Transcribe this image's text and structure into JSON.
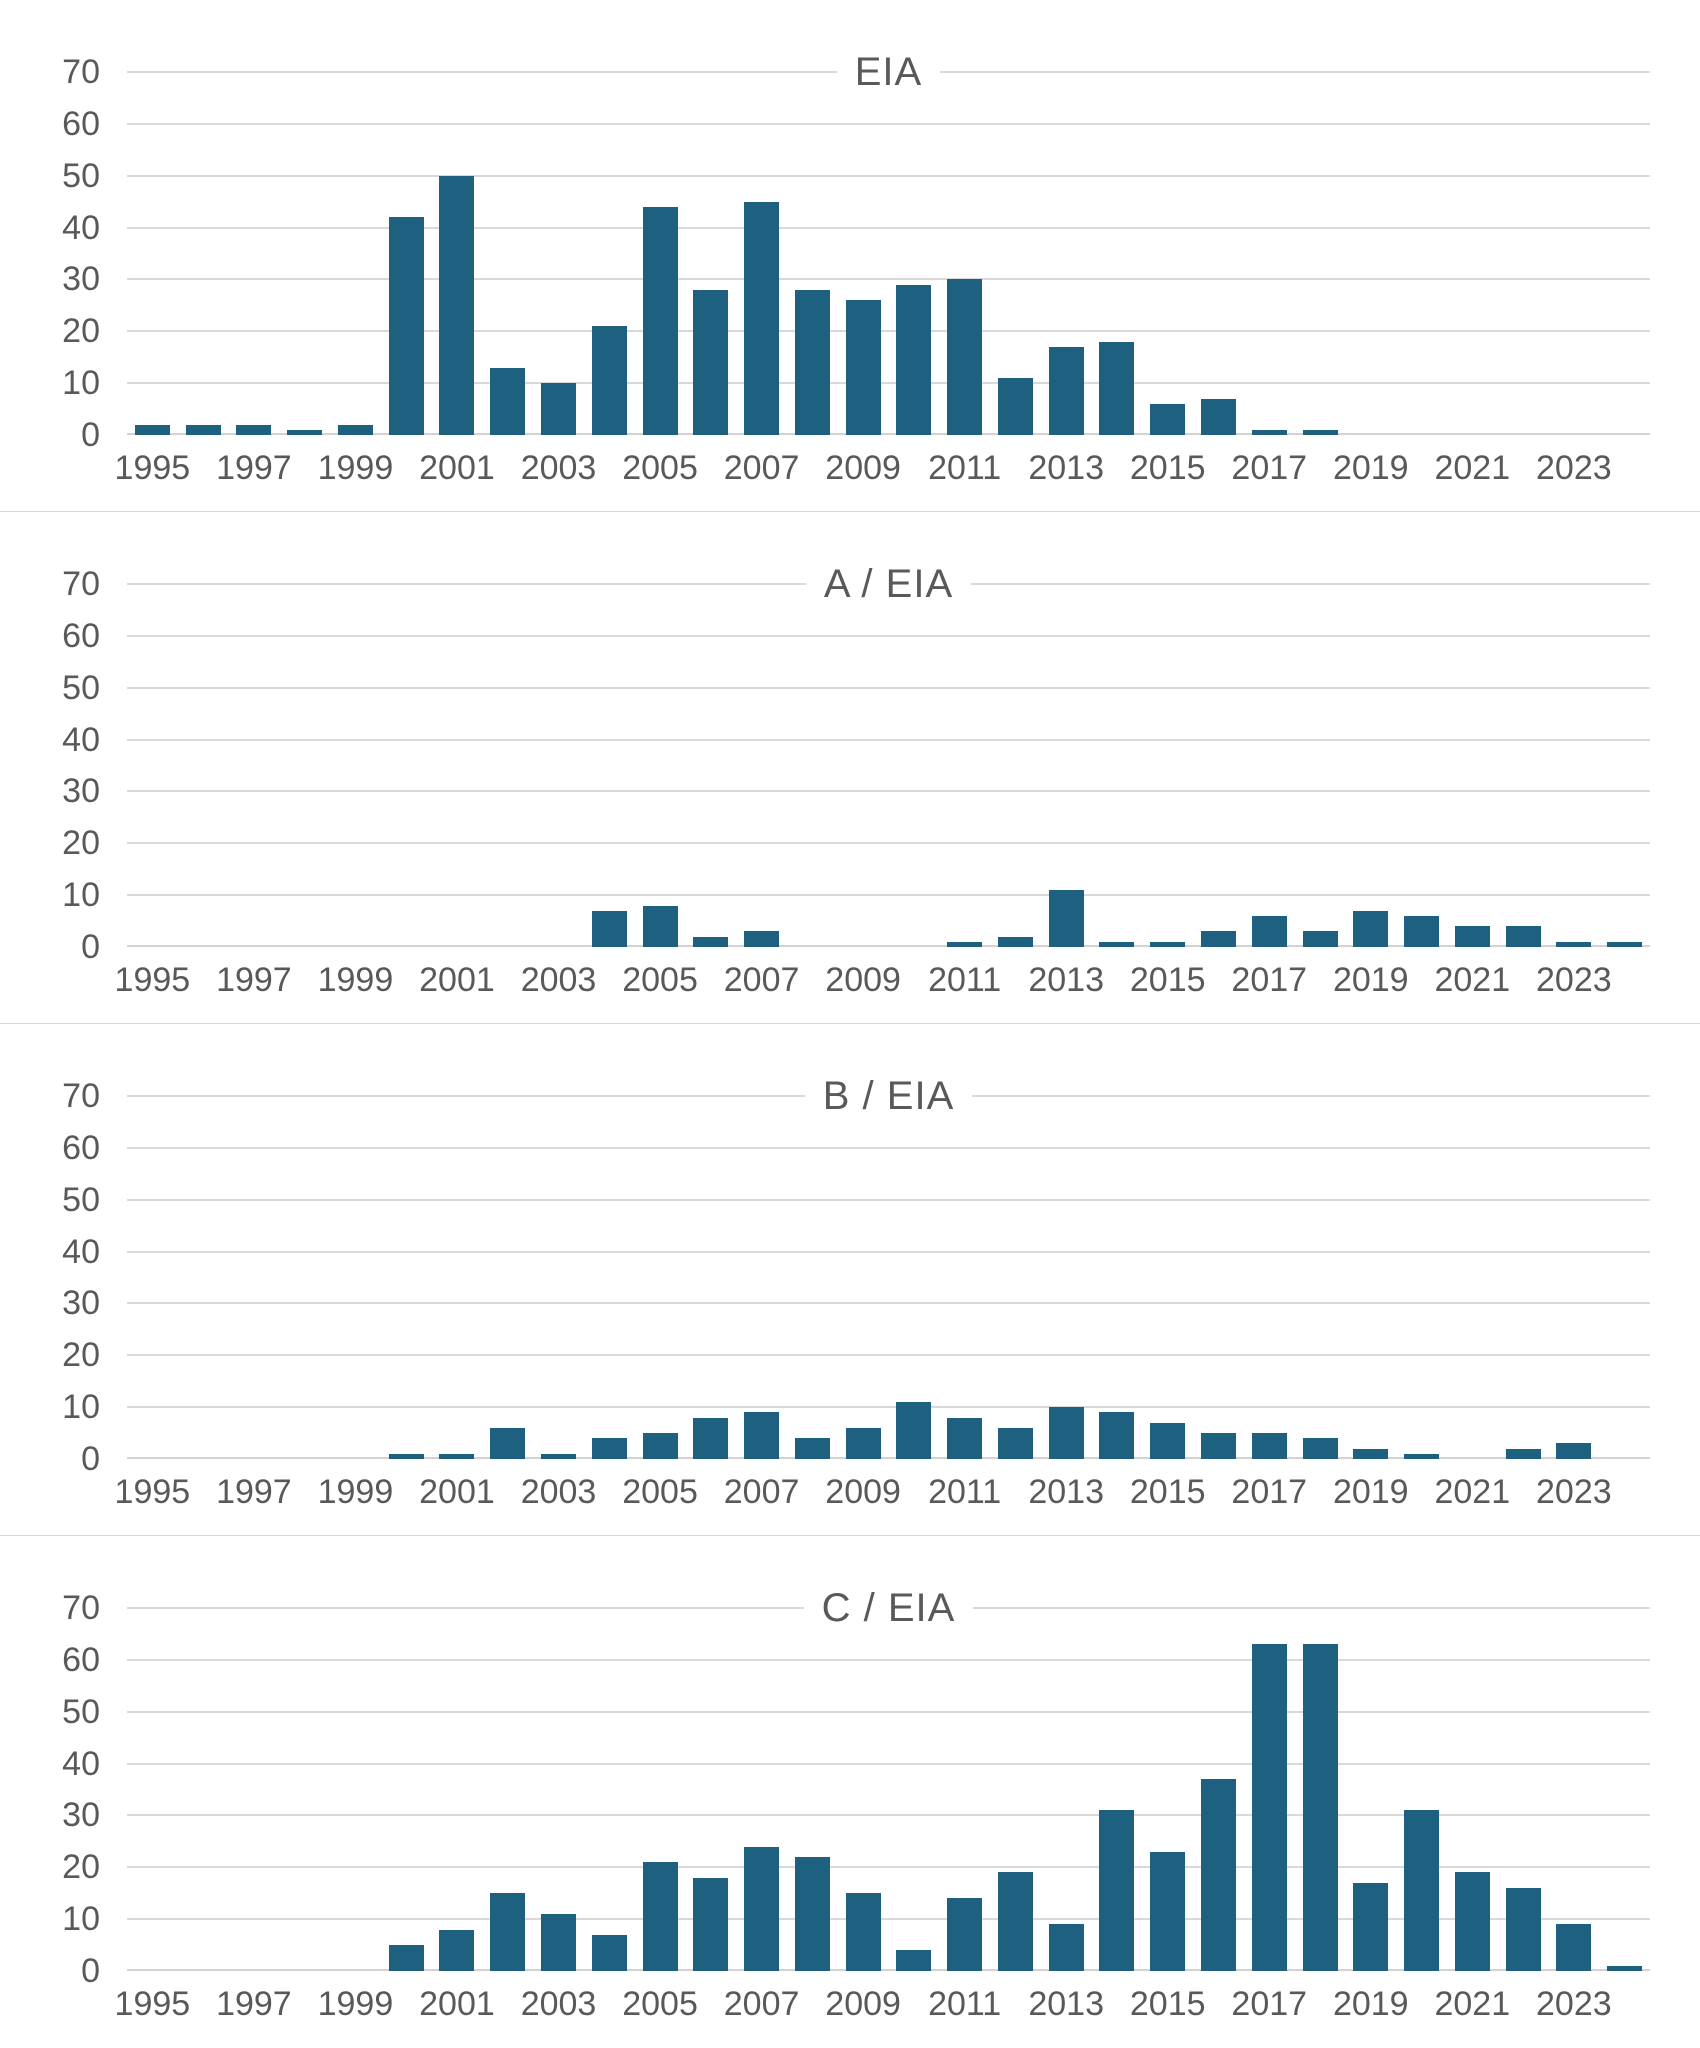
{
  "figure": {
    "background_color": "#ffffff",
    "outer_border_color": "#c9c9c9",
    "panel_separator_color": "#d9d9d9",
    "bar_color": "#1d6080",
    "gridline_color": "#d9d9d9",
    "text_color": "#595959",
    "panel_count": 4
  },
  "chart_data": [
    {
      "type": "bar",
      "title": "EIA",
      "x": [
        1995,
        1996,
        1997,
        1998,
        1999,
        2000,
        2001,
        2002,
        2003,
        2004,
        2005,
        2006,
        2007,
        2008,
        2009,
        2010,
        2011,
        2012,
        2013,
        2014,
        2015,
        2016,
        2017,
        2018,
        2019,
        2020,
        2021,
        2022,
        2023,
        2024
      ],
      "values": [
        2,
        2,
        2,
        1,
        2,
        42,
        50,
        13,
        10,
        21,
        44,
        28,
        45,
        28,
        26,
        29,
        30,
        11,
        17,
        18,
        6,
        7,
        1,
        1,
        0,
        0,
        0,
        0,
        0,
        0
      ],
      "xlabel": "",
      "ylabel": "",
      "ylim": [
        0,
        70
      ],
      "yticks": [
        0,
        10,
        20,
        30,
        40,
        50,
        60,
        70
      ],
      "xtick_labels": [
        "1995",
        "1997",
        "1999",
        "2001",
        "2003",
        "2005",
        "2007",
        "2009",
        "2011",
        "2013",
        "2015",
        "2017",
        "2019",
        "2021",
        "2023"
      ],
      "grid": true,
      "legend": false
    },
    {
      "type": "bar",
      "title": "A / EIA",
      "x": [
        1995,
        1996,
        1997,
        1998,
        1999,
        2000,
        2001,
        2002,
        2003,
        2004,
        2005,
        2006,
        2007,
        2008,
        2009,
        2010,
        2011,
        2012,
        2013,
        2014,
        2015,
        2016,
        2017,
        2018,
        2019,
        2020,
        2021,
        2022,
        2023,
        2024
      ],
      "values": [
        0,
        0,
        0,
        0,
        0,
        0,
        0,
        0,
        0,
        7,
        8,
        2,
        3,
        0,
        0,
        0,
        1,
        2,
        11,
        1,
        1,
        3,
        6,
        3,
        7,
        6,
        4,
        4,
        1,
        1
      ],
      "xlabel": "",
      "ylabel": "",
      "ylim": [
        0,
        70
      ],
      "yticks": [
        0,
        10,
        20,
        30,
        40,
        50,
        60,
        70
      ],
      "xtick_labels": [
        "1995",
        "1997",
        "1999",
        "2001",
        "2003",
        "2005",
        "2007",
        "2009",
        "2011",
        "2013",
        "2015",
        "2017",
        "2019",
        "2021",
        "2023"
      ],
      "grid": true,
      "legend": false
    },
    {
      "type": "bar",
      "title": "B / EIA",
      "x": [
        1995,
        1996,
        1997,
        1998,
        1999,
        2000,
        2001,
        2002,
        2003,
        2004,
        2005,
        2006,
        2007,
        2008,
        2009,
        2010,
        2011,
        2012,
        2013,
        2014,
        2015,
        2016,
        2017,
        2018,
        2019,
        2020,
        2021,
        2022,
        2023,
        2024
      ],
      "values": [
        0,
        0,
        0,
        0,
        0,
        1,
        1,
        6,
        1,
        4,
        5,
        8,
        9,
        4,
        6,
        11,
        8,
        6,
        10,
        9,
        7,
        5,
        5,
        4,
        2,
        1,
        0,
        2,
        3,
        0
      ],
      "xlabel": "",
      "ylabel": "",
      "ylim": [
        0,
        70
      ],
      "yticks": [
        0,
        10,
        20,
        30,
        40,
        50,
        60,
        70
      ],
      "xtick_labels": [
        "1995",
        "1997",
        "1999",
        "2001",
        "2003",
        "2005",
        "2007",
        "2009",
        "2011",
        "2013",
        "2015",
        "2017",
        "2019",
        "2021",
        "2023"
      ],
      "grid": true,
      "legend": false
    },
    {
      "type": "bar",
      "title": "C / EIA",
      "x": [
        1995,
        1996,
        1997,
        1998,
        1999,
        2000,
        2001,
        2002,
        2003,
        2004,
        2005,
        2006,
        2007,
        2008,
        2009,
        2010,
        2011,
        2012,
        2013,
        2014,
        2015,
        2016,
        2017,
        2018,
        2019,
        2020,
        2021,
        2022,
        2023,
        2024
      ],
      "values": [
        0,
        0,
        0,
        0,
        0,
        5,
        8,
        15,
        11,
        7,
        21,
        18,
        24,
        22,
        15,
        4,
        14,
        19,
        9,
        31,
        23,
        37,
        63,
        63,
        17,
        31,
        19,
        16,
        9,
        1
      ],
      "xlabel": "",
      "ylabel": "",
      "ylim": [
        0,
        70
      ],
      "yticks": [
        0,
        10,
        20,
        30,
        40,
        50,
        60,
        70
      ],
      "xtick_labels": [
        "1995",
        "1997",
        "1999",
        "2001",
        "2003",
        "2005",
        "2007",
        "2009",
        "2011",
        "2013",
        "2015",
        "2017",
        "2019",
        "2021",
        "2023"
      ],
      "grid": true,
      "legend": false
    }
  ]
}
